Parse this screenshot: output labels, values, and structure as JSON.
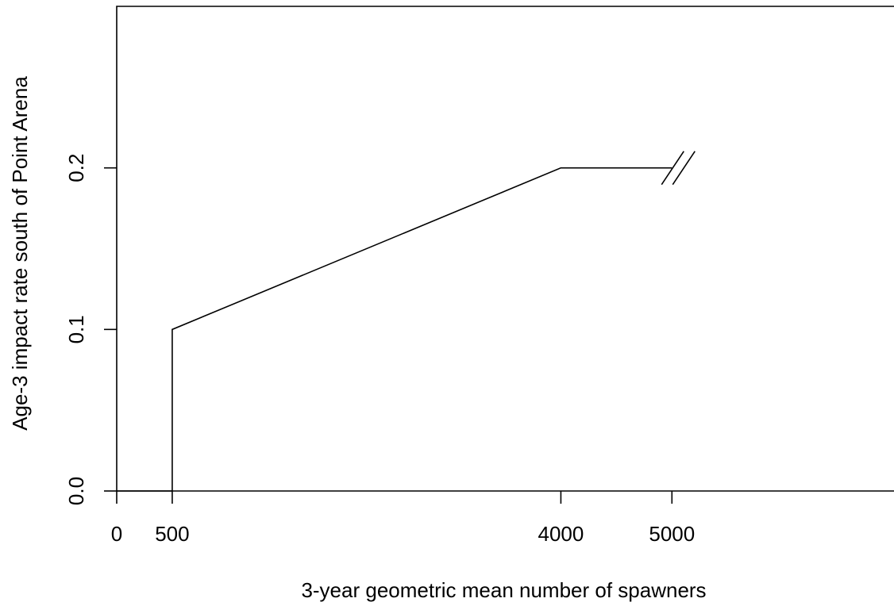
{
  "chart_data": {
    "type": "line",
    "title": "",
    "xlabel": "3-year geometric mean number of spawners",
    "ylabel": "Age-3 impact rate south of Point Arena",
    "xlim": [
      0,
      7000
    ],
    "ylim": [
      0,
      0.3
    ],
    "x_ticks": [
      {
        "value": 0,
        "label": "0"
      },
      {
        "value": 500,
        "label": "500"
      },
      {
        "value": 4000,
        "label": "4000"
      },
      {
        "value": 5000,
        "label": "5000"
      }
    ],
    "y_ticks": [
      {
        "value": 0,
        "label": "0.0"
      },
      {
        "value": 0.1,
        "label": "0.1"
      },
      {
        "value": 0.2,
        "label": "0.2"
      }
    ],
    "series": [
      {
        "x": [
          0,
          500,
          500,
          4000,
          5000
        ],
        "y": [
          0,
          0,
          0.1,
          0.2,
          0.2
        ]
      }
    ],
    "axis_break": {
      "x": 5000,
      "y": 0.2
    },
    "grid": false,
    "legend": "none"
  }
}
